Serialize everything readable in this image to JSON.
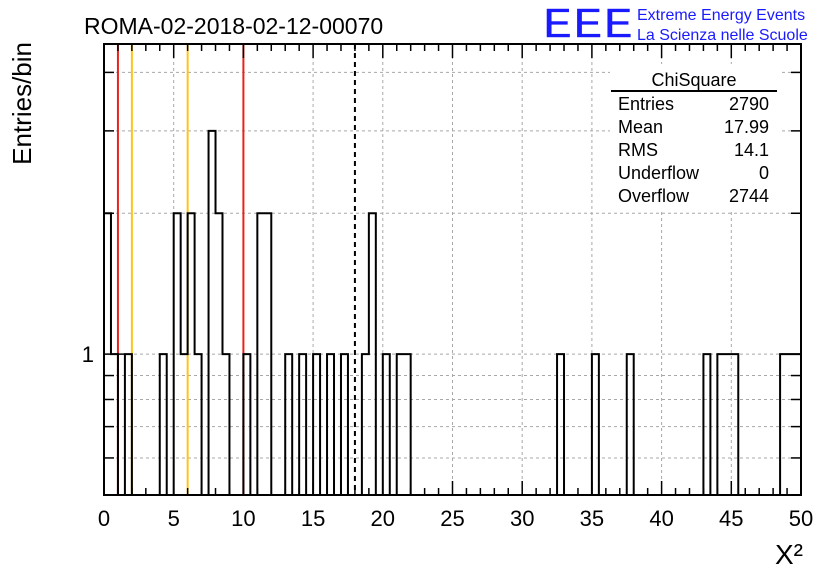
{
  "chart_data": {
    "type": "bar",
    "style": "step-histogram",
    "title": "ROMA-02-2018-02-12-00070",
    "xlabel": "X²",
    "ylabel": "Entries/bin",
    "xlim": [
      0,
      50
    ],
    "ylim": [
      0.5,
      4.6
    ],
    "yscale": "log",
    "grid": true,
    "bin_width": 0.5,
    "x_ticks": [
      "0",
      "5",
      "10",
      "15",
      "20",
      "25",
      "30",
      "35",
      "40",
      "45",
      "50"
    ],
    "y_ticks": [
      "1"
    ],
    "bins": [
      {
        "x": 0.0,
        "y": 2
      },
      {
        "x": 0.5,
        "y": 1
      },
      {
        "x": 1.5,
        "y": 1
      },
      {
        "x": 4.0,
        "y": 1
      },
      {
        "x": 5.0,
        "y": 2
      },
      {
        "x": 5.5,
        "y": 1
      },
      {
        "x": 6.0,
        "y": 2
      },
      {
        "x": 6.5,
        "y": 1
      },
      {
        "x": 7.5,
        "y": 3
      },
      {
        "x": 8.0,
        "y": 2
      },
      {
        "x": 8.5,
        "y": 1
      },
      {
        "x": 10.0,
        "y": 1
      },
      {
        "x": 11.0,
        "y": 2
      },
      {
        "x": 11.5,
        "y": 2
      },
      {
        "x": 13.0,
        "y": 1
      },
      {
        "x": 14.0,
        "y": 1
      },
      {
        "x": 15.0,
        "y": 1
      },
      {
        "x": 16.0,
        "y": 1
      },
      {
        "x": 17.0,
        "y": 1
      },
      {
        "x": 18.5,
        "y": 1
      },
      {
        "x": 19.0,
        "y": 2
      },
      {
        "x": 20.0,
        "y": 1
      },
      {
        "x": 21.0,
        "y": 1
      },
      {
        "x": 21.5,
        "y": 1
      },
      {
        "x": 32.5,
        "y": 1
      },
      {
        "x": 35.0,
        "y": 1
      },
      {
        "x": 37.5,
        "y": 1
      },
      {
        "x": 43.0,
        "y": 1
      },
      {
        "x": 44.0,
        "y": 1
      },
      {
        "x": 44.5,
        "y": 1
      },
      {
        "x": 45.0,
        "y": 1
      },
      {
        "x": 48.5,
        "y": 1
      },
      {
        "x": 49.0,
        "y": 1
      },
      {
        "x": 49.5,
        "y": 1
      }
    ],
    "reference_lines": [
      {
        "x": 1.0,
        "color": "#e8231f",
        "style": "solid"
      },
      {
        "x": 2.0,
        "color": "#ffc21c",
        "style": "solid"
      },
      {
        "x": 6.0,
        "color": "#ffc21c",
        "style": "solid"
      },
      {
        "x": 10.0,
        "color": "#e8231f",
        "style": "solid"
      },
      {
        "x": 18.0,
        "color": "#000000",
        "style": "dashed"
      }
    ],
    "stats": {
      "title": "ChiSquare",
      "rows": [
        {
          "label": "Entries",
          "value": "2790"
        },
        {
          "label": "Mean",
          "value": "17.99"
        },
        {
          "label": "RMS",
          "value": "14.1"
        },
        {
          "label": "Underflow",
          "value": "0"
        },
        {
          "label": "Overflow",
          "value": "2744"
        }
      ]
    },
    "branding": {
      "logo": "EEE",
      "line1": "Extreme Energy Events",
      "line2": "La Scienza nelle Scuole",
      "color": "#1a1aff"
    }
  }
}
